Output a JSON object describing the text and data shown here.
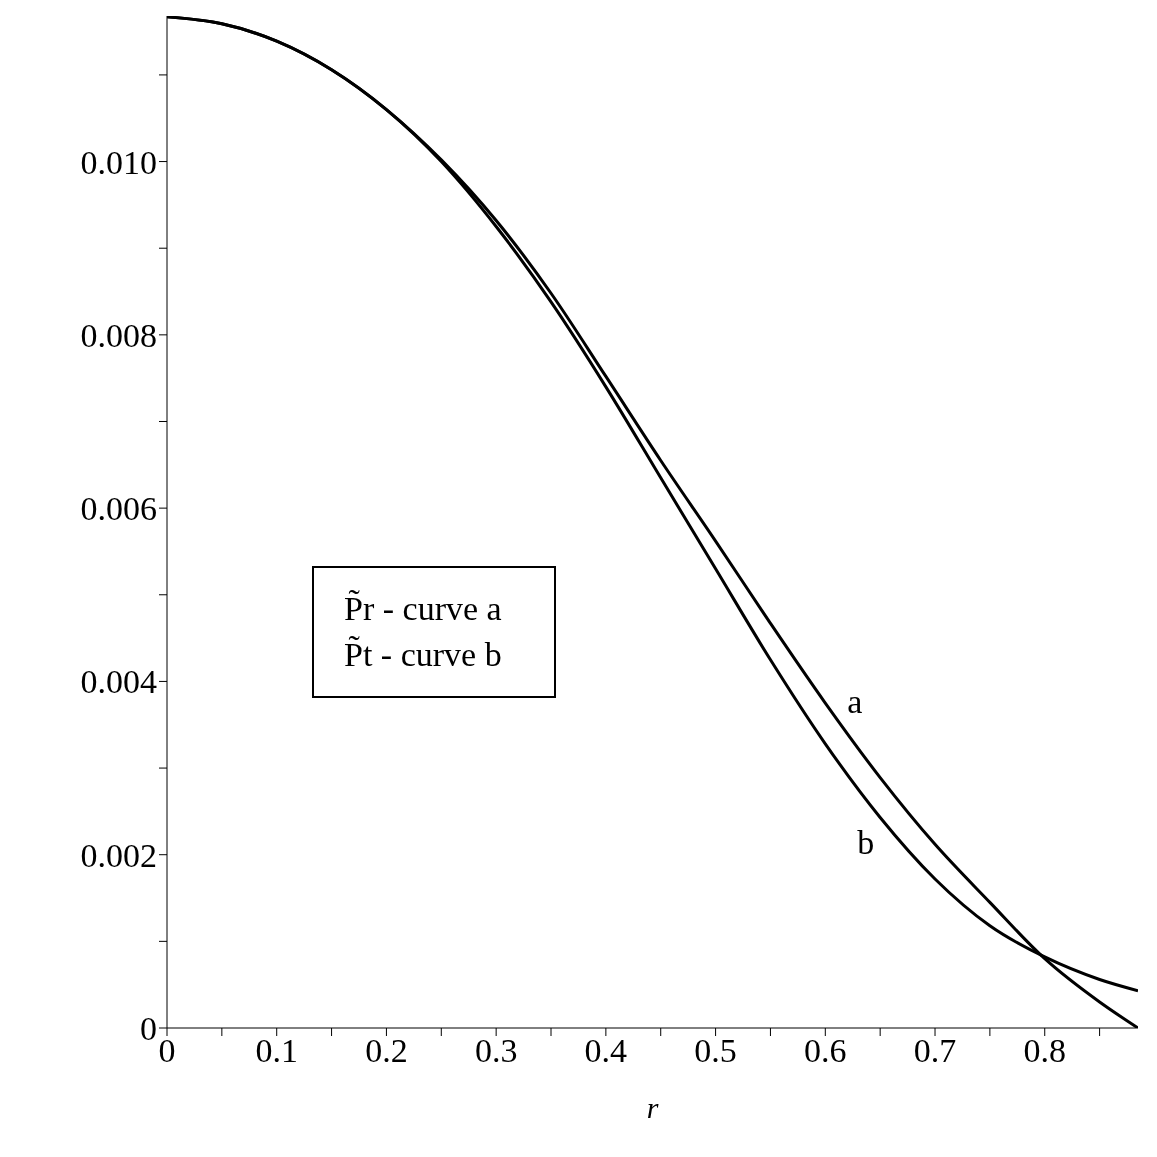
{
  "chart_data": {
    "type": "line",
    "xlabel": "r",
    "x": [
      0,
      0.05,
      0.1,
      0.15,
      0.2,
      0.25,
      0.3,
      0.35,
      0.4,
      0.45,
      0.5,
      0.55,
      0.6,
      0.65,
      0.7,
      0.75,
      0.8,
      0.85,
      0.885
    ],
    "series": [
      {
        "name": "a",
        "color": "#000000",
        "values": [
          0.01167,
          0.01159,
          0.01139,
          0.01106,
          0.0106,
          0.01002,
          0.00932,
          0.00848,
          0.00752,
          0.00655,
          0.00562,
          0.00467,
          0.00375,
          0.00289,
          0.00212,
          0.00145,
          0.0008,
          0.0003,
          0
        ]
      },
      {
        "name": "b",
        "color": "#000000",
        "values": [
          0.01167,
          0.01159,
          0.01139,
          0.01106,
          0.0106,
          0.01,
          0.00925,
          0.00838,
          0.0074,
          0.00635,
          0.0053,
          0.00425,
          0.00328,
          0.00243,
          0.00172,
          0.00118,
          0.00082,
          0.00056,
          0.00043
        ]
      }
    ],
    "annotations": [
      "P̃r - curve a",
      "P̃t - curve b"
    ],
    "xlim": [
      0,
      0.885
    ],
    "xticks": [
      0,
      {
        "value": 0.05,
        "label": null
      },
      0.1,
      {
        "value": 0.15,
        "label": null
      },
      0.2,
      {
        "value": 0.25,
        "label": null
      },
      0.3,
      {
        "value": 0.35,
        "label": null
      },
      0.4,
      {
        "value": 0.45,
        "label": null
      },
      0.5,
      {
        "value": 0.55,
        "label": null
      },
      0.6,
      {
        "value": 0.65,
        "label": null
      },
      0.7,
      {
        "value": 0.75,
        "label": null
      },
      0.8,
      {
        "value": 0.85,
        "label": null
      }
    ],
    "ylim": [
      0,
      0.01168
    ],
    "yticks": [
      0,
      {
        "value": 0.001,
        "label": null
      },
      {
        "value": 0.002,
        "label": "0.002"
      },
      {
        "value": 0.003,
        "label": null
      },
      {
        "value": 0.004,
        "label": "0.004"
      },
      {
        "value": 0.005,
        "label": null
      },
      {
        "value": 0.006,
        "label": "0.006"
      },
      {
        "value": 0.007,
        "label": null
      },
      {
        "value": 0.008,
        "label": "0.008"
      },
      {
        "value": 0.009,
        "label": null
      },
      {
        "value": 0.01,
        "label": "0.010"
      },
      {
        "value": 0.011,
        "label": null
      }
    ],
    "grid": false,
    "marker": "none",
    "line_style": "solid"
  }
}
